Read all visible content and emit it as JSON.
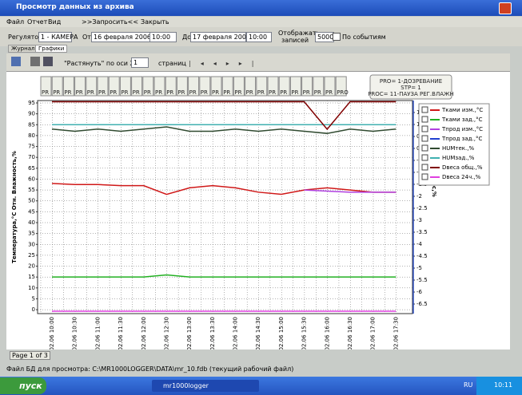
{
  "window": {
    "title": "Просмотр данных из архива"
  },
  "menu": [
    "Файл",
    "Отчет",
    "Вид",
    ">>Запросить<<",
    "Закрыть"
  ],
  "toolbar": {
    "regulator_label": "Регулятор",
    "regulator": "1 - КАМЕРА",
    "from_label": "От",
    "from_date": "16 февраля 2006",
    "from_time": "10:00",
    "to_label": "До",
    "to_date": "17 февраля 2006",
    "to_time": "10:00",
    "records_label": "Отображать записей",
    "records": "5000",
    "events_label": "По событиям"
  },
  "tabs": [
    "Журнал",
    "Графики"
  ],
  "chart_toolbar": {
    "stretch_label": "\"Растянуть\" по оси X на",
    "pages": "1",
    "pages_label": "страниц"
  },
  "chart_data": {
    "type": "line",
    "y_label": "Температура,°С   Отн. Влажность,%",
    "y2_label": "Дельта вес,%",
    "categories": [
      "16.02.06 10:00",
      "16.02.06 10:30",
      "16.02.06 11:00",
      "16.02.06 11:30",
      "16.02.06 12:00",
      "16.02.06 12:30",
      "16.02.06 13:00",
      "16.02.06 13:30",
      "16.02.06 14:00",
      "16.02.06 14:30",
      "16.02.06 15:00",
      "16.02.06 15:30",
      "16.02.06 16:00",
      "16.02.06 16:30",
      "16.02.06 17:00",
      "16.02.06 17:30"
    ],
    "ylim": [
      -1.8,
      96.1
    ],
    "yticks": [
      0,
      5,
      10,
      15,
      20,
      25,
      30,
      35,
      40,
      45,
      50,
      55,
      60,
      65,
      70,
      75,
      80,
      85,
      90,
      95
    ],
    "y2lim": [
      -6.9,
      2.0
    ],
    "y2ticks": [
      -6.5,
      -6,
      -5.5,
      -5,
      -4.5,
      -4,
      -3.5,
      -3,
      -2.5,
      -2,
      -1.5,
      -1,
      -0.5,
      0,
      0.5,
      1,
      1.5
    ],
    "grid": true,
    "series": [
      {
        "name": "Тками изм.,°С",
        "color": "#d01818",
        "values": [
          58,
          57.5,
          57.5,
          57,
          57,
          53,
          56,
          57,
          56,
          54,
          53,
          55,
          56,
          55,
          54,
          54
        ]
      },
      {
        "name": "Тками зад.,°С",
        "color": "#22b022",
        "values": [
          15,
          15,
          15,
          15,
          15,
          16,
          15,
          15,
          15,
          15,
          15,
          15,
          15,
          15,
          15,
          15
        ]
      },
      {
        "name": "Тпрод изм.,°С",
        "color": "#b040e0",
        "values": [
          null,
          null,
          null,
          null,
          null,
          null,
          null,
          null,
          null,
          null,
          null,
          55,
          54.5,
          54,
          54,
          54
        ]
      },
      {
        "name": "Тпрод зад.,°С",
        "color": "#2040d0",
        "values": [
          null,
          null,
          null,
          null,
          null,
          null,
          null,
          null,
          null,
          null,
          null,
          null,
          null,
          null,
          null,
          null
        ]
      },
      {
        "name": "HUMтек.,%",
        "color": "#304a30",
        "values": [
          83,
          82,
          83,
          82,
          83,
          84,
          82,
          82,
          83,
          82,
          83,
          82,
          81,
          83,
          82,
          83
        ]
      },
      {
        "name": "HUMзад.,%",
        "color": "#40b0b0",
        "values": [
          85,
          85,
          85,
          85,
          85,
          85,
          85,
          85,
          85,
          85,
          85,
          85,
          85,
          85,
          85,
          85
        ]
      },
      {
        "name": "Dвеса общ.,%",
        "color": "#800000",
        "axis": "y2",
        "values": [
          1.95,
          1.95,
          1.95,
          1.95,
          1.95,
          1.95,
          1.95,
          1.95,
          1.95,
          1.95,
          1.95,
          1.95,
          0.8,
          1.95,
          1.95,
          1.95
        ]
      },
      {
        "name": "Dвеса 24ч.,%",
        "color": "#e040e0",
        "axis": "y2",
        "values": [
          -6.8,
          -6.8,
          -6.8,
          -6.8,
          -6.8,
          -6.8,
          -6.8,
          -6.8,
          -6.8,
          -6.8,
          -6.8,
          -6.8,
          -6.8,
          -6.8,
          -6.8,
          -6.8
        ]
      }
    ],
    "events": [
      "PR",
      "PR",
      "PR",
      "PR",
      "PR",
      "PR",
      "PR",
      "PR",
      "PR",
      "PR",
      "PR",
      "PR",
      "PR",
      "PR",
      "PR",
      "PR",
      "PR",
      "PR",
      "PR",
      "PR",
      "PR",
      "PR",
      "PR",
      "PR",
      "PR",
      "PR",
      "PRO"
    ],
    "annotation": [
      "PRO= 1-ДОЗРЕВАНИЕ",
      "STP= 1",
      "PROC= 11-ПАУЗА РЕГ.ВЛАЖН"
    ]
  },
  "status": {
    "page": "Page 1 of 3",
    "file": "Файл БД для просмотра: C:\\MR1000LOGGER\\DATA\\mr_10.fdb (текущий рабочий файл)"
  },
  "taskbar": {
    "start": "пуск",
    "app": "mr1000logger",
    "lang": "RU",
    "clock": "10:11"
  }
}
